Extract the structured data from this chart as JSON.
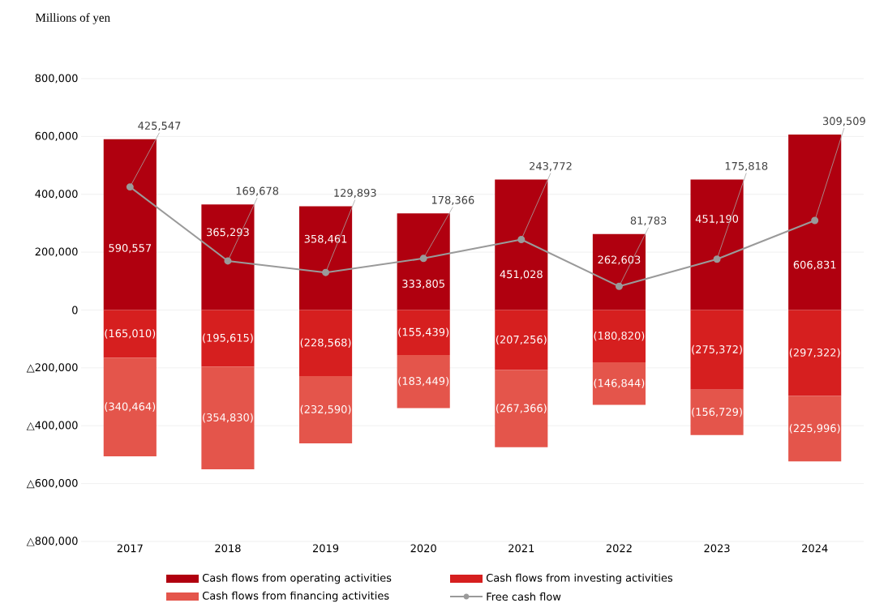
{
  "chart_data": {
    "type": "bar",
    "stacked": true,
    "ylabel": "Millions of yen",
    "categories": [
      "2017",
      "2018",
      "2019",
      "2020",
      "2021",
      "2022",
      "2023",
      "2024"
    ],
    "ylim": [
      -800000,
      800000
    ],
    "yticks": [
      {
        "value": -800000,
        "label": "△800,000"
      },
      {
        "value": -600000,
        "label": "△600,000"
      },
      {
        "value": -400000,
        "label": "△400,000"
      },
      {
        "value": -200000,
        "label": "△200,000"
      },
      0,
      {
        "value": 200000,
        "label": "200,000"
      },
      {
        "value": 400000,
        "label": "400,000"
      },
      {
        "value": 600000,
        "label": "600,000"
      },
      {
        "value": 800000,
        "label": "800,000"
      }
    ],
    "grid": "y",
    "legend": "bottom",
    "series": [
      {
        "name": "Cash flows from operating activities",
        "color": "#b0000f",
        "values": [
          590557,
          365293,
          358461,
          333805,
          451028,
          262603,
          451190,
          606831
        ],
        "value_labels": [
          "590,557",
          "365,293",
          "358,461",
          "333,805",
          "451,028",
          "262,603",
          "451,190",
          "606,831"
        ]
      },
      {
        "name": "Cash flows from investing activities",
        "color": "#d61f1f",
        "values": [
          -165010,
          -195615,
          -228568,
          -155439,
          -207256,
          -180820,
          -275372,
          -297322
        ],
        "value_labels": [
          "(165,010)",
          "(195,615)",
          "(228,568)",
          "(155,439)",
          "(207,256)",
          "(180,820)",
          "(275,372)",
          "(297,322)"
        ]
      },
      {
        "name": "Cash flows from financing activities",
        "color": "#e4554b",
        "values": [
          -340464,
          -354830,
          -232590,
          -183449,
          -267366,
          -146844,
          -156729,
          -225996
        ],
        "value_labels": [
          "(340,464)",
          "(354,830)",
          "(232,590)",
          "(183,449)",
          "(267,366)",
          "(146,844)",
          "(156,729)",
          "(225,996)"
        ]
      },
      {
        "name": "Free cash flow",
        "type": "line",
        "color": "#9a9a9a",
        "marker": "circle",
        "line_style": "solid",
        "values": [
          425547,
          169678,
          129893,
          178366,
          243772,
          81783,
          175818,
          309509
        ],
        "value_labels": [
          "425,547",
          "169,678",
          "129,893",
          "178,366",
          "243,772",
          "81,783",
          "175,818",
          "309,509"
        ]
      }
    ]
  }
}
